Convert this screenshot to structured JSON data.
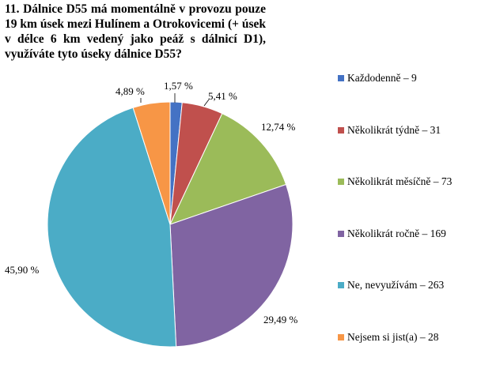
{
  "chart_data": {
    "type": "pie",
    "title": "11. Dálnice D55 má momentálně v provozu pouze 19 km úsek mezi Hulínem a Otrokovicemi (+ úsek v délce 6 km vedený jako peáž s dálnicí D1), využíváte tyto úseky dálnice D55?",
    "slices": [
      {
        "label": "Každodenně – 9",
        "value": 9,
        "percent_label": "1,57 %",
        "color": "#4472C4"
      },
      {
        "label": "Několikrát týdně – 31",
        "value": 31,
        "percent_label": "5,41 %",
        "color": "#C0504D"
      },
      {
        "label": "Několikrát měsíčně – 73",
        "value": 73,
        "percent_label": "12,74 %",
        "color": "#9BBB59"
      },
      {
        "label": "Několikrát ročně – 169",
        "value": 169,
        "percent_label": "29,49 %",
        "color": "#8064A2"
      },
      {
        "label": "Ne, nevyužívám – 263",
        "value": 263,
        "percent_label": "45,90 %",
        "color": "#4BACC6"
      },
      {
        "label": "Nejsem si jist(a) – 28",
        "value": 28,
        "percent_label": "4,89 %",
        "color": "#F79646"
      }
    ],
    "legend_position": "right"
  }
}
